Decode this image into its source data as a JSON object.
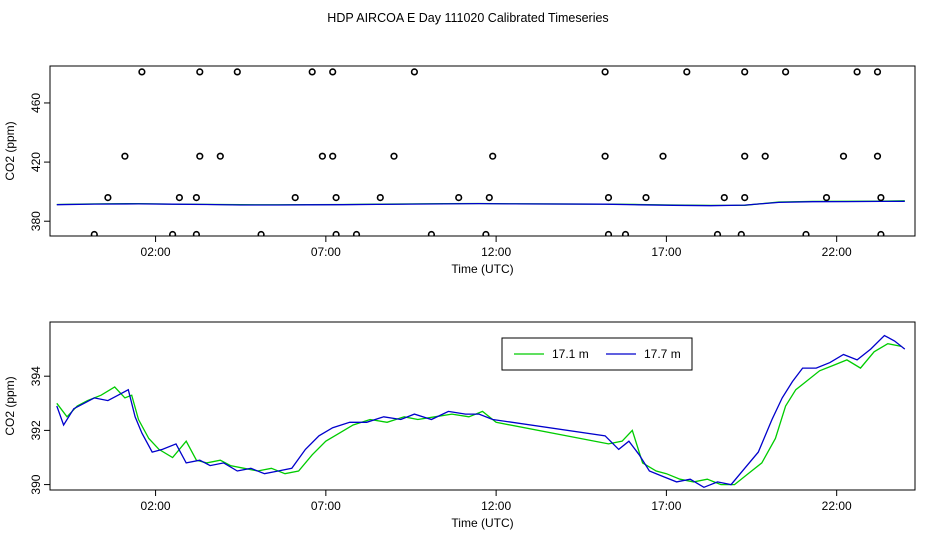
{
  "title": "HDP AIRCOA E  Day 111020  Calibrated Timeseries",
  "chart_data": [
    {
      "type": "scatter",
      "xlabel": "Time (UTC)",
      "ylabel": "CO2 (ppm)",
      "xlim": [
        -1.1,
        24.3
      ],
      "ylim": [
        370,
        485
      ],
      "x_ticks": [
        {
          "value": 2,
          "label": "02:00"
        },
        {
          "value": 7,
          "label": "07:00"
        },
        {
          "value": 12,
          "label": "12:00"
        },
        {
          "value": 17,
          "label": "17:00"
        },
        {
          "value": 22,
          "label": "22:00"
        }
      ],
      "y_ticks": [
        {
          "value": 380,
          "label": "380"
        },
        {
          "value": 420,
          "label": "420"
        },
        {
          "value": 460,
          "label": "460"
        }
      ],
      "points": [
        [
          1.6,
          481
        ],
        [
          3.3,
          481
        ],
        [
          4.4,
          481
        ],
        [
          6.6,
          481
        ],
        [
          7.2,
          481
        ],
        [
          9.6,
          481
        ],
        [
          15.2,
          481
        ],
        [
          17.6,
          481
        ],
        [
          19.3,
          481
        ],
        [
          20.5,
          481
        ],
        [
          22.6,
          481
        ],
        [
          23.2,
          481
        ],
        [
          1.1,
          424
        ],
        [
          3.3,
          424
        ],
        [
          3.9,
          424
        ],
        [
          6.9,
          424
        ],
        [
          7.2,
          424
        ],
        [
          9.0,
          424
        ],
        [
          11.9,
          424
        ],
        [
          15.2,
          424
        ],
        [
          16.9,
          424
        ],
        [
          19.3,
          424
        ],
        [
          19.9,
          424
        ],
        [
          22.2,
          424
        ],
        [
          23.2,
          424
        ],
        [
          0.6,
          396
        ],
        [
          2.7,
          396
        ],
        [
          3.2,
          396
        ],
        [
          6.1,
          396
        ],
        [
          7.3,
          396
        ],
        [
          8.6,
          396
        ],
        [
          10.9,
          396
        ],
        [
          11.8,
          396
        ],
        [
          15.3,
          396
        ],
        [
          16.4,
          396
        ],
        [
          18.7,
          396
        ],
        [
          19.3,
          396
        ],
        [
          21.7,
          396
        ],
        [
          23.3,
          396
        ],
        [
          0.2,
          371
        ],
        [
          2.5,
          371
        ],
        [
          3.2,
          371
        ],
        [
          5.1,
          371
        ],
        [
          7.3,
          371
        ],
        [
          7.9,
          371
        ],
        [
          10.1,
          371
        ],
        [
          11.7,
          371
        ],
        [
          15.3,
          371
        ],
        [
          15.8,
          371
        ],
        [
          18.5,
          371
        ],
        [
          19.2,
          371
        ],
        [
          21.1,
          371
        ],
        [
          23.3,
          371
        ]
      ],
      "series": [
        {
          "color": "#00cc00",
          "x": [
            -0.9,
            0.2,
            1.5,
            2.5,
            3.5,
            4.5,
            5.6,
            6.5,
            7.5,
            8.5,
            9.5,
            10.5,
            11.5,
            12.5,
            15.2,
            16.2,
            17.2,
            18.3,
            19.3,
            20.3,
            21.3,
            22.3,
            23.3,
            24.0
          ],
          "y": [
            391.3,
            391.7,
            391.9,
            391.6,
            391.4,
            391.2,
            391.1,
            391.2,
            391.3,
            391.5,
            391.7,
            391.9,
            392.0,
            391.8,
            391.6,
            391.3,
            391.0,
            390.7,
            390.8,
            393.0,
            393.4,
            393.5,
            393.6,
            393.8
          ]
        },
        {
          "color": "#0000cc",
          "x": [
            -0.9,
            0.2,
            1.5,
            2.5,
            3.5,
            4.5,
            5.6,
            6.5,
            7.5,
            8.5,
            9.5,
            10.5,
            11.5,
            12.5,
            15.2,
            16.2,
            17.2,
            18.3,
            19.3,
            20.3,
            21.3,
            22.3,
            23.3,
            24.0
          ],
          "y": [
            391.2,
            391.6,
            391.7,
            391.5,
            391.3,
            391.0,
            391.0,
            391.1,
            391.2,
            391.4,
            391.6,
            391.7,
            391.9,
            391.7,
            391.5,
            391.1,
            390.8,
            390.5,
            390.9,
            392.7,
            393.2,
            393.3,
            393.4,
            393.5
          ]
        }
      ]
    },
    {
      "type": "line",
      "xlabel": "Time (UTC)",
      "ylabel": "CO2 (ppm)",
      "xlim": [
        -1.1,
        24.3
      ],
      "ylim": [
        389.8,
        396.0
      ],
      "x_ticks": [
        {
          "value": 2,
          "label": "02:00"
        },
        {
          "value": 7,
          "label": "07:00"
        },
        {
          "value": 12,
          "label": "12:00"
        },
        {
          "value": 17,
          "label": "17:00"
        },
        {
          "value": 22,
          "label": "22:00"
        }
      ],
      "y_ticks": [
        {
          "value": 390,
          "label": "390"
        },
        {
          "value": 392,
          "label": "392"
        },
        {
          "value": 394,
          "label": "394"
        }
      ],
      "legend": "top-right",
      "series": [
        {
          "name": "17.1 m",
          "color": "#00cc00",
          "x": [
            -0.9,
            -0.6,
            -0.3,
            0.0,
            0.4,
            0.8,
            1.1,
            1.3,
            1.5,
            1.8,
            2.1,
            2.5,
            2.9,
            3.2,
            3.5,
            3.9,
            4.2,
            4.6,
            5.0,
            5.4,
            5.8,
            6.2,
            6.6,
            7.0,
            7.4,
            7.8,
            8.3,
            8.8,
            9.3,
            9.7,
            10.2,
            10.7,
            11.2,
            11.6,
            12.0,
            15.3,
            15.7,
            16.0,
            16.3,
            16.7,
            17.0,
            17.4,
            17.8,
            18.2,
            18.6,
            19.0,
            19.4,
            19.8,
            20.2,
            20.5,
            20.8,
            21.1,
            21.5,
            21.9,
            22.3,
            22.7,
            23.1,
            23.5,
            23.9
          ],
          "y": [
            393.0,
            392.5,
            392.9,
            393.1,
            393.3,
            393.6,
            393.2,
            393.3,
            392.4,
            391.7,
            391.3,
            391.0,
            391.6,
            390.9,
            390.8,
            390.9,
            390.7,
            390.6,
            390.5,
            390.6,
            390.4,
            390.5,
            391.1,
            391.6,
            391.9,
            392.2,
            392.4,
            392.3,
            392.5,
            392.4,
            392.5,
            392.6,
            392.5,
            392.7,
            392.3,
            391.5,
            391.6,
            392.0,
            390.8,
            390.5,
            390.4,
            390.2,
            390.1,
            390.2,
            390.0,
            390.0,
            390.4,
            390.8,
            391.7,
            392.9,
            393.5,
            393.8,
            394.2,
            394.4,
            394.6,
            394.3,
            394.9,
            395.2,
            395.1
          ]
        },
        {
          "name": "17.7 m",
          "color": "#0000cc",
          "x": [
            -0.9,
            -0.7,
            -0.4,
            -0.1,
            0.2,
            0.6,
            0.9,
            1.2,
            1.4,
            1.6,
            1.9,
            2.2,
            2.6,
            2.9,
            3.3,
            3.6,
            4.0,
            4.4,
            4.8,
            5.2,
            5.6,
            6.0,
            6.4,
            6.8,
            7.2,
            7.7,
            8.2,
            8.7,
            9.2,
            9.6,
            10.1,
            10.6,
            11.1,
            11.5,
            11.9,
            15.2,
            15.6,
            15.9,
            16.2,
            16.5,
            16.9,
            17.3,
            17.7,
            18.1,
            18.5,
            18.9,
            19.3,
            19.7,
            20.1,
            20.4,
            20.7,
            21.0,
            21.4,
            21.8,
            22.2,
            22.6,
            23.0,
            23.4,
            23.7,
            24.0
          ],
          "y": [
            392.9,
            392.2,
            392.8,
            393.0,
            393.2,
            393.1,
            393.3,
            393.5,
            392.5,
            391.9,
            391.2,
            391.3,
            391.5,
            390.8,
            390.9,
            390.7,
            390.8,
            390.5,
            390.6,
            390.4,
            390.5,
            390.6,
            391.3,
            391.8,
            392.1,
            392.3,
            392.3,
            392.5,
            392.4,
            392.6,
            392.4,
            392.7,
            392.6,
            392.6,
            392.4,
            391.8,
            391.3,
            391.6,
            391.1,
            390.5,
            390.3,
            390.1,
            390.2,
            389.9,
            390.1,
            390.0,
            390.6,
            391.2,
            392.4,
            393.2,
            393.8,
            394.3,
            394.3,
            394.5,
            394.8,
            394.6,
            395.0,
            395.5,
            395.3,
            395.0
          ]
        }
      ]
    }
  ]
}
